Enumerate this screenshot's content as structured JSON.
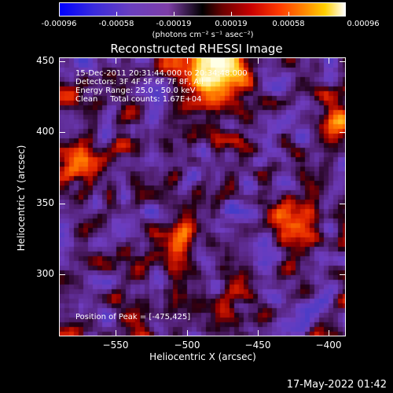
{
  "colorbar": {
    "tick_labels": [
      "-0.00096",
      "-0.00058",
      "-0.00019",
      "0.00019",
      "0.00058",
      "0.00096"
    ],
    "units": "(photons cm⁻² s⁻¹ asec⁻²)"
  },
  "title": "Reconstructed RHESSI Image",
  "annotations": {
    "line1": "15-Dec-2011 20:31:44.000 to 20:34:48.000",
    "line2": "Detectors: 3F 4F 5F 6F 7F 8F, All",
    "line3": "Energy Range: 25.0 - 50.0 keV",
    "line4": "Clean     Total counts: 1.67E+04",
    "peak": "Position of Peak = [-475,425]"
  },
  "axes": {
    "xlabel": "Heliocentric X (arcsec)",
    "ylabel": "Heliocentric Y (arcsec)",
    "x_ticks": [
      "−550",
      "−500",
      "−450",
      "−400"
    ],
    "y_ticks": [
      "450",
      "400",
      "350",
      "300"
    ]
  },
  "footer": "17-May-2022 01:42",
  "colors": {
    "background": "#000000",
    "text": "#ffffff"
  }
}
